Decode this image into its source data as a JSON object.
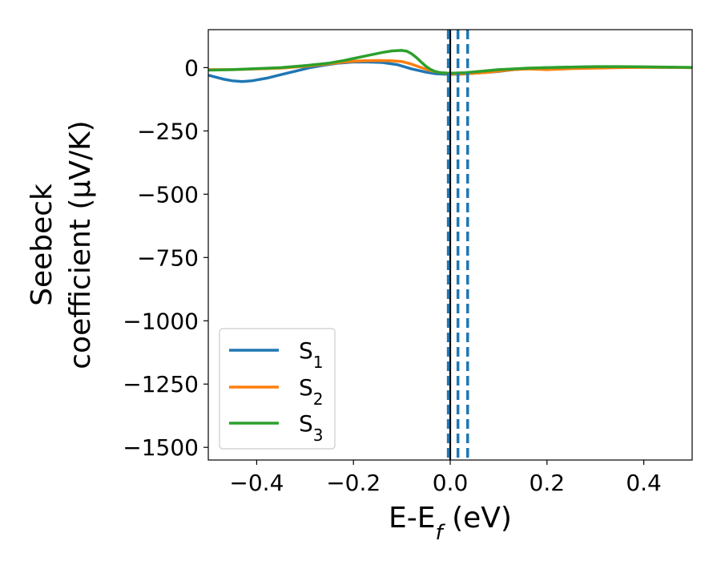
{
  "chart_data": {
    "type": "line",
    "xlabel": {
      "main": "E-E",
      "sub": "f",
      "unit": " (eV)"
    },
    "ylabel": {
      "line1": "Seebeck",
      "line2": "coefficient  (μV/K)"
    },
    "xlim": [
      -0.5,
      0.5
    ],
    "ylim": [
      -1550,
      150
    ],
    "xticks": [
      -0.4,
      -0.2,
      0.0,
      0.2,
      0.4
    ],
    "xtick_labels": [
      "−0.4",
      "−0.2",
      "0.0",
      "0.2",
      "0.4"
    ],
    "yticks": [
      0,
      -250,
      -500,
      -750,
      -1000,
      -1250,
      -1500
    ],
    "ytick_labels": [
      "0",
      "−250",
      "−500",
      "−750",
      "−1000",
      "−1250",
      "−1500"
    ],
    "grid": false,
    "legend_position": "lower-left",
    "vlines": [
      {
        "x": 0.0,
        "style": "solid",
        "color": "#000000"
      },
      {
        "x": -0.004,
        "style": "dashed",
        "color": "#1f77b4"
      },
      {
        "x": 0.016,
        "style": "dashed",
        "color": "#1f77b4"
      },
      {
        "x": 0.036,
        "style": "dashed",
        "color": "#1f77b4"
      }
    ],
    "series": [
      {
        "name": "S1",
        "label_main": "S",
        "label_sub": "1",
        "color": "#1f77b4",
        "x": [
          -0.5,
          -0.47,
          -0.45,
          -0.43,
          -0.41,
          -0.38,
          -0.35,
          -0.32,
          -0.29,
          -0.26,
          -0.23,
          -0.2,
          -0.17,
          -0.14,
          -0.11,
          -0.08,
          -0.05,
          -0.03,
          -0.01,
          0.0,
          0.02,
          0.05,
          0.08,
          0.1,
          0.13,
          0.16,
          0.2,
          0.25,
          0.3,
          0.35,
          0.4,
          0.45,
          0.5
        ],
        "y": [
          -30,
          -45,
          -52,
          -55,
          -52,
          -42,
          -28,
          -14,
          0,
          10,
          18,
          22,
          22,
          20,
          12,
          -5,
          -18,
          -24,
          -26,
          -26,
          -26,
          -22,
          -18,
          -15,
          -8,
          -4,
          0,
          2,
          3,
          3,
          2,
          1,
          0
        ]
      },
      {
        "name": "S2",
        "label_main": "S",
        "label_sub": "2",
        "color": "#ff7f0e",
        "x": [
          -0.5,
          -0.45,
          -0.4,
          -0.35,
          -0.3,
          -0.25,
          -0.22,
          -0.2,
          -0.18,
          -0.15,
          -0.12,
          -0.1,
          -0.08,
          -0.06,
          -0.04,
          -0.02,
          0.0,
          0.02,
          0.05,
          0.08,
          0.1,
          0.13,
          0.16,
          0.2,
          0.25,
          0.3,
          0.35,
          0.4,
          0.45,
          0.5
        ],
        "y": [
          -8,
          -8,
          -5,
          -2,
          5,
          15,
          22,
          25,
          27,
          28,
          27,
          24,
          14,
          0,
          -12,
          -20,
          -24,
          -25,
          -22,
          -18,
          -14,
          -8,
          -5,
          -8,
          -4,
          -2,
          0,
          1,
          1,
          0
        ]
      },
      {
        "name": "S3",
        "label_main": "S",
        "label_sub": "3",
        "color": "#2ca02c",
        "x": [
          -0.5,
          -0.45,
          -0.4,
          -0.35,
          -0.3,
          -0.25,
          -0.22,
          -0.2,
          -0.17,
          -0.14,
          -0.12,
          -0.1,
          -0.09,
          -0.08,
          -0.07,
          -0.06,
          -0.05,
          -0.04,
          -0.03,
          -0.02,
          0.0,
          0.03,
          0.06,
          0.1,
          0.13,
          0.16,
          0.2,
          0.25,
          0.3,
          0.35,
          0.4,
          0.45,
          0.5
        ],
        "y": [
          -10,
          -8,
          -4,
          0,
          8,
          18,
          28,
          36,
          48,
          60,
          66,
          68,
          65,
          55,
          40,
          22,
          5,
          -8,
          -16,
          -20,
          -22,
          -20,
          -15,
          -8,
          -5,
          -2,
          0,
          2,
          4,
          4,
          3,
          2,
          1
        ]
      }
    ]
  }
}
